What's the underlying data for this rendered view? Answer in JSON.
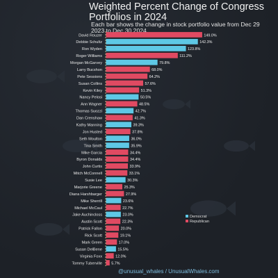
{
  "header": {
    "title": "Weighted Percent Change of Congress Portfolios in 2024",
    "subtitle": "Each bar shows the change in stock portfolio value from Dec 29 2023 to Dec 30 2024."
  },
  "footer": {
    "text": "@unusual_whales / UnusualWhales.com"
  },
  "colors": {
    "democrat": "#5ec8e5",
    "republican": "#e04a62",
    "background": "#1f2329",
    "axis": "#d8c98a"
  },
  "chart_data": {
    "type": "bar",
    "orientation": "horizontal",
    "legend": {
      "position": "bottom-right",
      "entries": [
        "Democrat",
        "Republican"
      ]
    },
    "grid": false,
    "categories": [
      "David Rouzer",
      "Debbie Schultz",
      "Ron Wyden",
      "Roger Williams",
      "Morgan McGarvey",
      "Larry Bucshon",
      "Pete Sessions",
      "Susan Collins",
      "Kevin Kiley",
      "Nancy Pelosi",
      "Ann Wagner",
      "Thomas Suozzi",
      "Dan Crenshaw",
      "Kathy Manning",
      "Jon Husted",
      "Seth Moulton",
      "Tina Smith",
      "Mike Garcia",
      "Byron Donalds",
      "John Curtis",
      "Mitch McConnell",
      "Susie Lee",
      "Marjorie Greene",
      "Diana Harshbarger",
      "Mike Sherrill",
      "Michael McCaul",
      "Jake Auchincloss",
      "Austin Scott",
      "Patrick Fallon",
      "Rick Scott",
      "Mark Green",
      "Susan DelBene",
      "Virginia Foxx",
      "Tommy Tuberville"
    ],
    "values": [
      149.0,
      142.3,
      123.8,
      111.2,
      79.8,
      68.0,
      64.2,
      57.6,
      51.3,
      50.5,
      48.5,
      42.7,
      41.3,
      39.3,
      37.8,
      36.0,
      35.9,
      34.4,
      34.4,
      33.9,
      33.1,
      30.3,
      25.3,
      27.9,
      23.6,
      22.7,
      23.0,
      22.3,
      20.0,
      19.1,
      17.0,
      15.5,
      12.0,
      5.7
    ],
    "value_labels": [
      "149.0%",
      "142.3%",
      "123.8%",
      "111.2%",
      "79.8%",
      "68.0%",
      "64.2%",
      "57.6%",
      "51.3%",
      "50.5%",
      "48.5%",
      "42.7%",
      "41.3%",
      "39.3%",
      "37.8%",
      "36.0%",
      "35.9%",
      "34.4%",
      "34.4%",
      "33.9%",
      "33.1%",
      "30.3%",
      "25.3%",
      "27.9%",
      "23.6%",
      "22.7%",
      "23.0%",
      "22.3%",
      "20.0%",
      "19.1%",
      "17.0%",
      "15.5%",
      "12.0%",
      "5.7%"
    ],
    "parties": [
      "R",
      "D",
      "D",
      "R",
      "D",
      "R",
      "R",
      "R",
      "R",
      "D",
      "R",
      "D",
      "R",
      "D",
      "R",
      "D",
      "D",
      "R",
      "R",
      "R",
      "R",
      "D",
      "R",
      "R",
      "D",
      "R",
      "D",
      "R",
      "R",
      "R",
      "R",
      "D",
      "R",
      "R"
    ],
    "xlim": [
      0,
      155
    ]
  }
}
